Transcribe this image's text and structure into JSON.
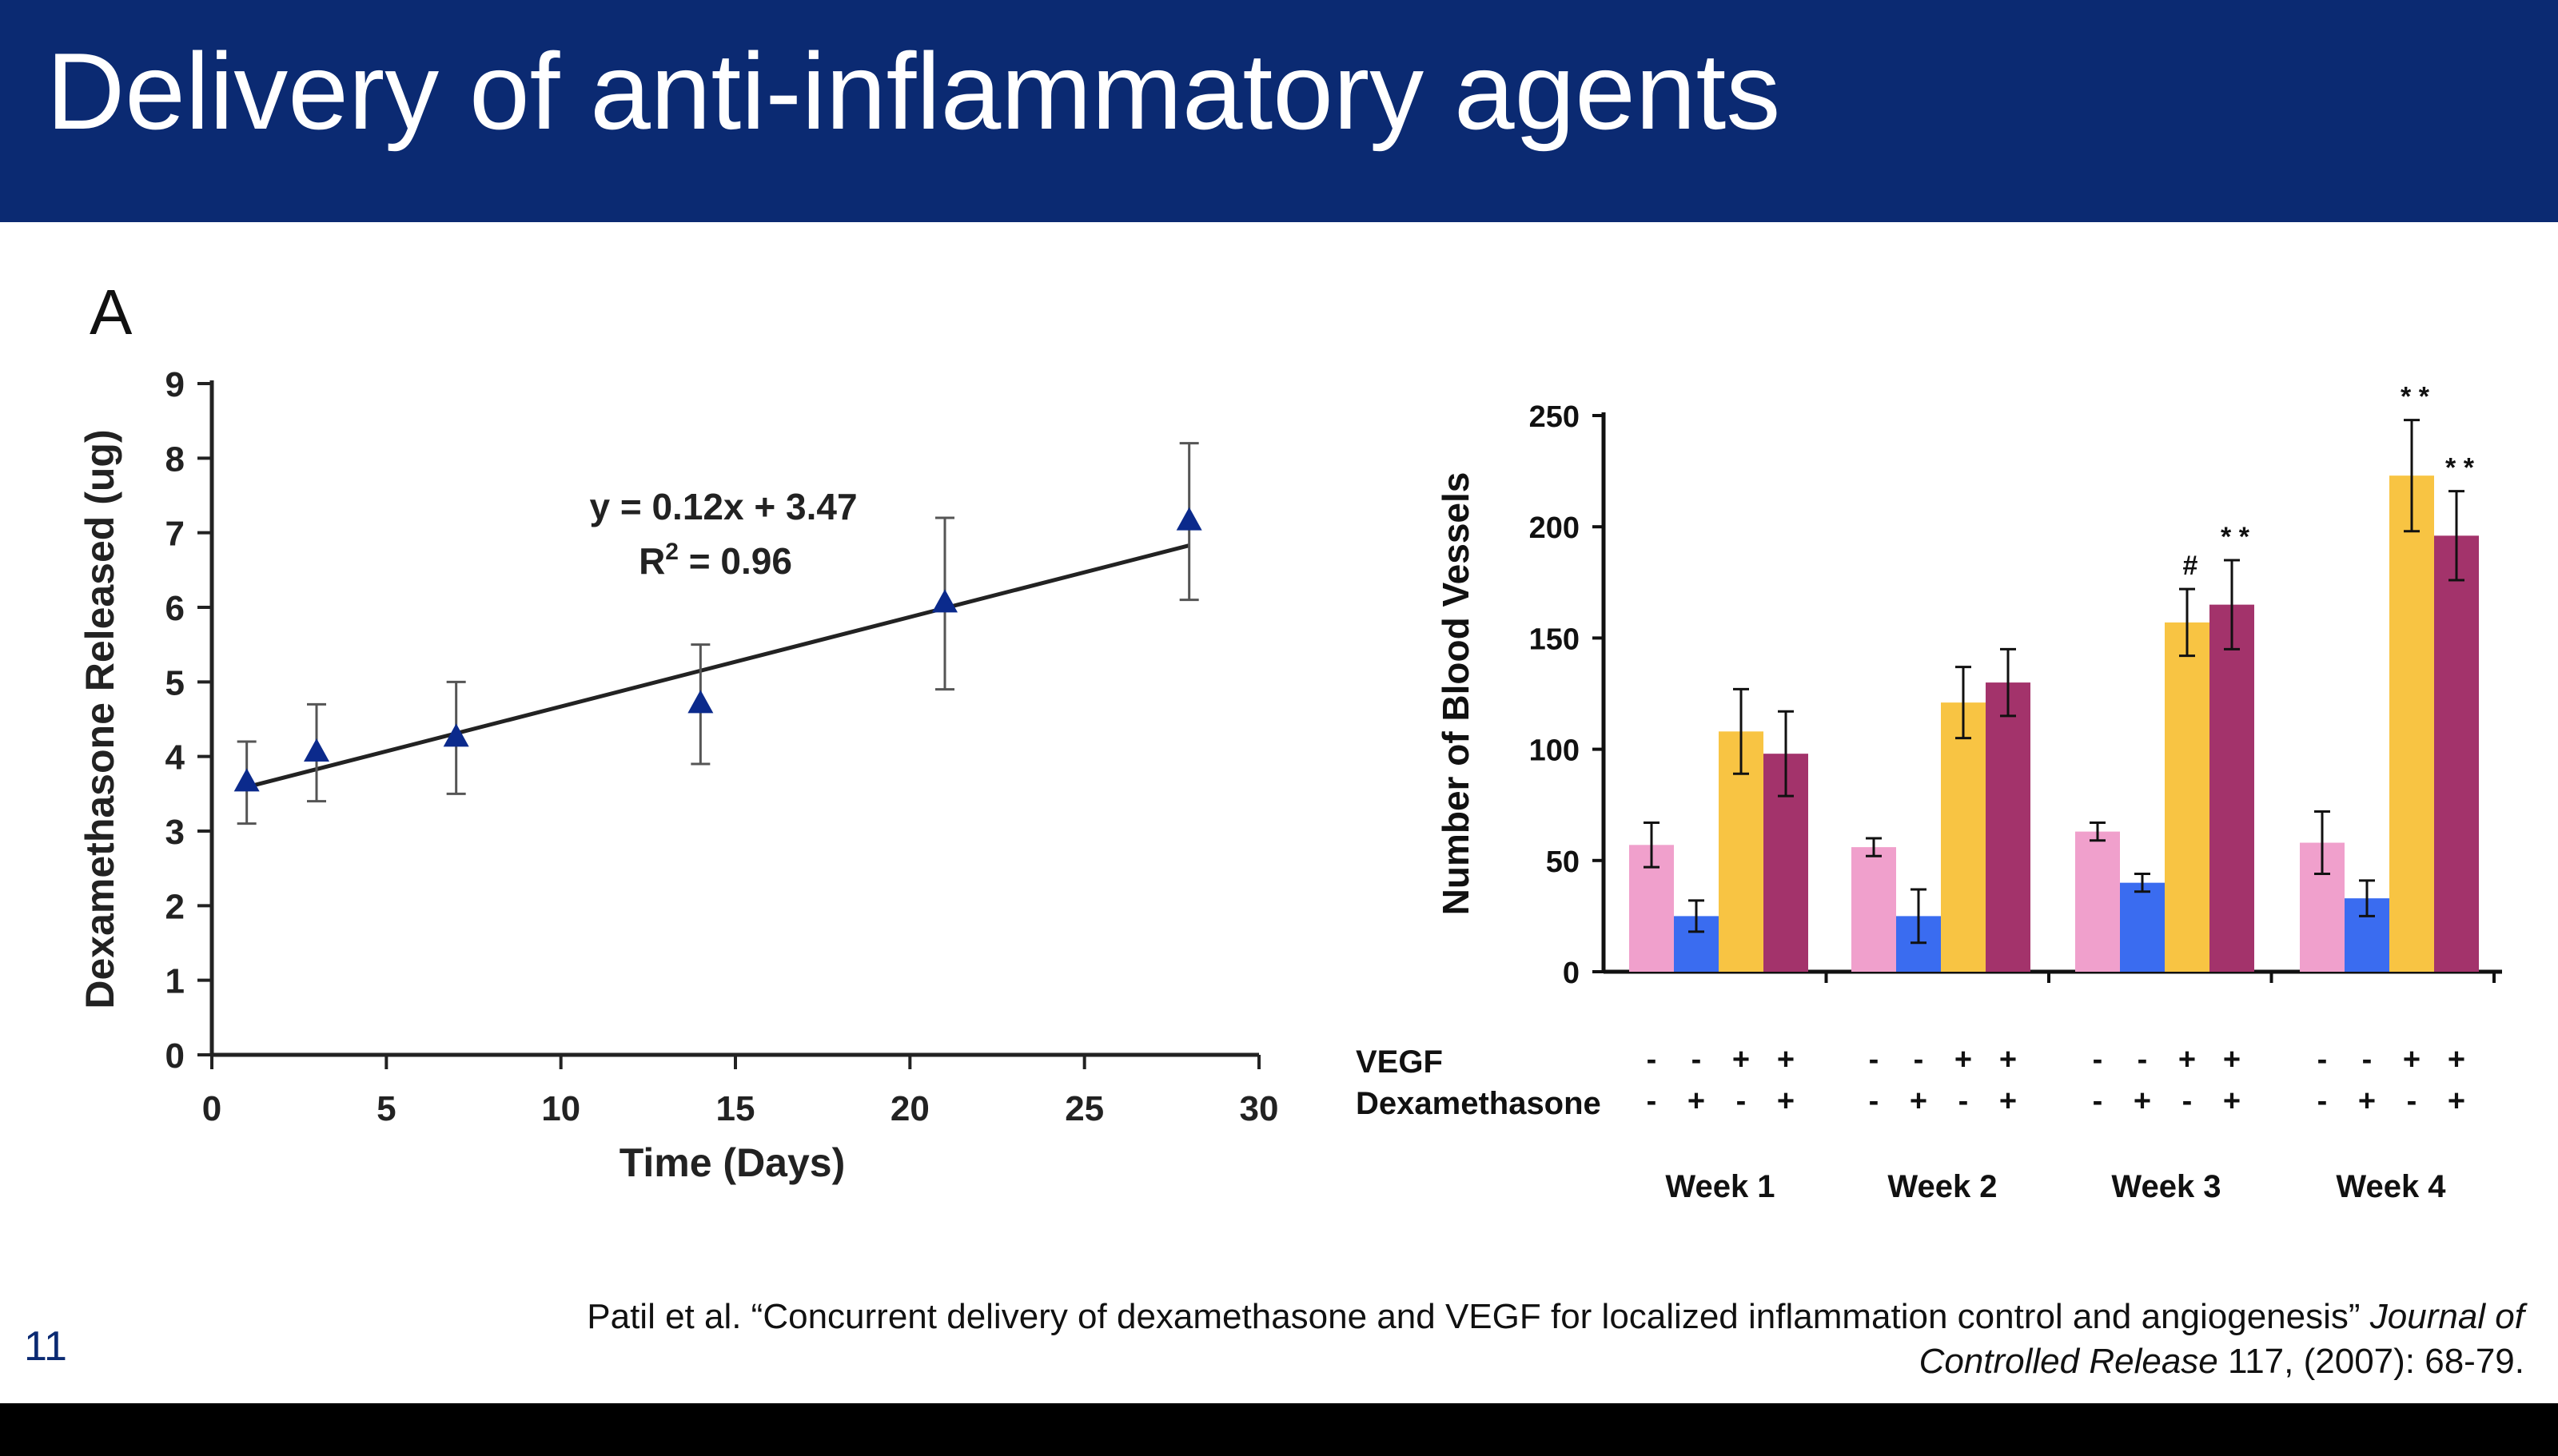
{
  "slide": {
    "title": "Delivery of anti-inflammatory agents",
    "page_number": "11",
    "citation": {
      "text_a": "Patil et al. “Concurrent delivery of dexamethasone and VEGF for localized inflammation control and angiogenesis” ",
      "journal_a": "Journal of",
      "journal_b": "Controlled Release",
      "text_b": " 117, (2007): 68-79."
    }
  },
  "chart_data": [
    {
      "type": "scatter",
      "panel_label": "A",
      "xlabel": "Time (Days)",
      "ylabel": "Dexamethasone Released (ug)",
      "xlim": [
        0,
        30
      ],
      "ylim": [
        0,
        9
      ],
      "xticks": [
        0,
        5,
        10,
        15,
        20,
        25,
        30
      ],
      "yticks": [
        0,
        1,
        2,
        3,
        4,
        5,
        6,
        7,
        8,
        9
      ],
      "marker_color": "#0b2a8c",
      "points": [
        {
          "x": 1,
          "y": 3.65,
          "err": 0.55
        },
        {
          "x": 3,
          "y": 4.05,
          "err": 0.65
        },
        {
          "x": 7,
          "y": 4.25,
          "err": 0.75
        },
        {
          "x": 14,
          "y": 4.7,
          "err": 0.8
        },
        {
          "x": 21,
          "y": 6.05,
          "err": 1.15
        },
        {
          "x": 28,
          "y": 7.15,
          "err": 1.05
        }
      ],
      "trendline": {
        "slope": 0.12,
        "intercept": 3.47,
        "x_range": [
          1,
          28
        ]
      },
      "annotations": {
        "equation": "y = 0.12x + 3.47",
        "r2_prefix": "R",
        "r2_sup": "2",
        "r2_value": " = 0.96"
      },
      "grid": false
    },
    {
      "type": "bar",
      "ylabel": "Number of Blood Vessels",
      "ylim": [
        0,
        250
      ],
      "yticks": [
        0,
        50,
        100,
        150,
        200,
        250
      ],
      "categories": [
        "Week 1",
        "Week 2",
        "Week 3",
        "Week 4"
      ],
      "row_labels": [
        "VEGF",
        "Dexamethasone"
      ],
      "series": [
        {
          "vegf": "-",
          "dex": "-",
          "color": "#f0a0cc",
          "values": [
            57,
            56,
            63,
            58
          ],
          "errors": [
            10,
            4,
            4,
            14
          ],
          "marks": [
            "",
            "",
            "",
            ""
          ]
        },
        {
          "vegf": "-",
          "dex": "+",
          "color": "#3a6cf0",
          "values": [
            25,
            25,
            40,
            33
          ],
          "errors": [
            7,
            12,
            4,
            8
          ],
          "marks": [
            "",
            "",
            "",
            ""
          ]
        },
        {
          "vegf": "+",
          "dex": "-",
          "color": "#f8c443",
          "values": [
            108,
            121,
            157,
            223
          ],
          "errors": [
            19,
            16,
            15,
            25
          ],
          "marks": [
            "",
            "",
            "#",
            "* *"
          ]
        },
        {
          "vegf": "+",
          "dex": "+",
          "color": "#a3336b",
          "values": [
            98,
            130,
            165,
            196
          ],
          "errors": [
            19,
            15,
            20,
            20
          ],
          "marks": [
            "",
            "",
            "* *",
            "* *"
          ]
        }
      ],
      "legend": "none",
      "grid": false
    }
  ]
}
